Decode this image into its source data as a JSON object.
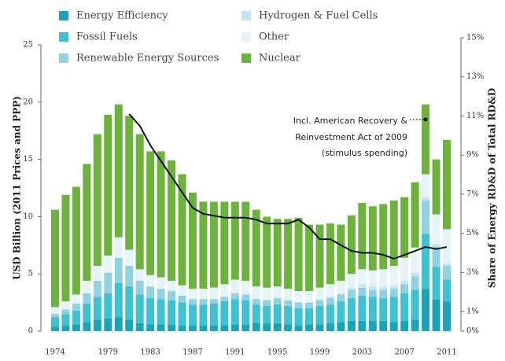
{
  "chart_data": {
    "type": "stacked-bar-line",
    "y_label": "USD Billion  (2011 Prices and PPP)",
    "y2_label": "Share of Energy RD&D of Total RD&D",
    "categories": [
      "1974",
      null,
      null,
      null,
      null,
      "1979",
      null,
      null,
      null,
      "1983",
      null,
      null,
      null,
      "1987",
      null,
      null,
      null,
      "1991",
      null,
      null,
      null,
      "1995",
      null,
      null,
      null,
      "1999",
      null,
      null,
      null,
      "2003",
      null,
      null,
      null,
      "2007",
      null,
      null,
      null,
      "2011"
    ],
    "ylim": [
      0,
      25
    ],
    "yticks": [
      0,
      5,
      10,
      15,
      20,
      25
    ],
    "y2lim": [
      0,
      15
    ],
    "y2ticks": [
      {
        "value": 0,
        "label": "0%"
      },
      {
        "value": 1,
        "label": "1%"
      },
      {
        "value": 3,
        "label": "3%"
      },
      {
        "value": 5,
        "label": "5%"
      },
      {
        "value": 7,
        "label": "7%"
      },
      {
        "value": 9,
        "label": "9%"
      },
      {
        "value": 11,
        "label": "11%"
      },
      {
        "value": 13,
        "label": "13%"
      },
      {
        "value": 15,
        "label": "15%"
      }
    ],
    "series": [
      {
        "name": "Energy Efficiency",
        "color": "#1aa3bb",
        "values": [
          0.4,
          0.5,
          0.6,
          0.8,
          1.0,
          1.1,
          1.2,
          1.0,
          0.7,
          0.6,
          0.6,
          0.6,
          0.5,
          0.5,
          0.5,
          0.5,
          0.5,
          0.6,
          0.6,
          0.7,
          0.7,
          0.7,
          0.6,
          0.5,
          0.6,
          0.6,
          0.7,
          0.8,
          0.9,
          0.9,
          0.9,
          0.9,
          0.8,
          0.9,
          1.0,
          3.7,
          2.8,
          2.6
        ]
      },
      {
        "name": "Fossil Fuels",
        "color": "#3cc2d3",
        "values": [
          0.8,
          1.0,
          1.2,
          1.6,
          2.0,
          2.2,
          3.0,
          2.9,
          2.5,
          2.3,
          2.2,
          2.1,
          2.0,
          1.8,
          1.8,
          1.9,
          2.1,
          2.2,
          2.1,
          1.6,
          1.5,
          1.6,
          1.6,
          1.5,
          1.4,
          1.6,
          1.6,
          1.8,
          2.0,
          2.2,
          2.1,
          2.0,
          2.2,
          2.4,
          2.6,
          4.8,
          2.8,
          1.9
        ]
      },
      {
        "name": "Renewable Energy Sources",
        "color": "#8fd3e2",
        "values": [
          0.3,
          0.4,
          0.6,
          0.9,
          1.4,
          1.8,
          2.2,
          1.8,
          1.2,
          1.0,
          0.9,
          0.8,
          0.6,
          0.5,
          0.5,
          0.4,
          0.4,
          0.5,
          0.5,
          0.5,
          0.5,
          0.6,
          0.5,
          0.5,
          0.5,
          0.5,
          0.6,
          0.6,
          0.7,
          0.7,
          0.6,
          0.7,
          0.7,
          0.8,
          1.2,
          2.9,
          1.8,
          1.2
        ]
      },
      {
        "name": "Hydrogen & Fuel Cells",
        "color": "#c2e7f0",
        "values": [
          0,
          0,
          0,
          0,
          0,
          0,
          0,
          0,
          0,
          0,
          0,
          0,
          0,
          0,
          0,
          0,
          0,
          0,
          0,
          0,
          0,
          0,
          0,
          0,
          0,
          0.1,
          0.1,
          0.1,
          0.2,
          0.3,
          0.3,
          0.3,
          0.3,
          0.3,
          0.3,
          0.3,
          0.2,
          0.2
        ]
      },
      {
        "name": "Other",
        "color": "#e5f4f8",
        "values": [
          0.6,
          0.7,
          0.8,
          1.1,
          1.3,
          1.5,
          1.8,
          1.4,
          1.0,
          1.0,
          1.0,
          0.9,
          0.9,
          0.9,
          0.9,
          1.0,
          1.1,
          1.2,
          1.2,
          1.1,
          1.1,
          1.0,
          1.0,
          1.0,
          1.0,
          1.0,
          1.1,
          1.1,
          1.2,
          1.3,
          1.4,
          1.5,
          1.7,
          2.0,
          2.2,
          2.0,
          2.6,
          3.0
        ]
      },
      {
        "name": "Nuclear",
        "color": "#6bb33b",
        "values": [
          8.5,
          9.3,
          9.4,
          10.2,
          11.5,
          12.3,
          11.6,
          11.7,
          11.8,
          10.8,
          11.0,
          10.5,
          9.7,
          8.4,
          7.6,
          7.5,
          7.2,
          6.8,
          6.9,
          6.7,
          6.2,
          5.9,
          6.1,
          6.4,
          5.8,
          5.5,
          5.3,
          4.9,
          5.1,
          5.8,
          5.6,
          5.7,
          5.7,
          5.3,
          5.7,
          6.1,
          4.8,
          7.8
        ]
      },
      {
        "name": "Share of Energy RD&D of Total RD&D",
        "color": "#111111",
        "axis": "y2",
        "kind": "line",
        "values": [
          null,
          null,
          null,
          null,
          null,
          null,
          null,
          11.1,
          10.5,
          9.5,
          8.7,
          7.9,
          7.1,
          6.3,
          6.0,
          5.9,
          5.8,
          5.8,
          5.8,
          5.7,
          5.5,
          5.5,
          5.5,
          5.7,
          5.3,
          4.7,
          4.7,
          4.4,
          4.1,
          4.0,
          4.0,
          3.9,
          3.7,
          3.9,
          4.1,
          4.3,
          4.2,
          4.3
        ]
      }
    ],
    "annotation": [
      "Incl. American Recovery &",
      "Reinvestment Act of 2009",
      "(stimulus spending)"
    ]
  }
}
